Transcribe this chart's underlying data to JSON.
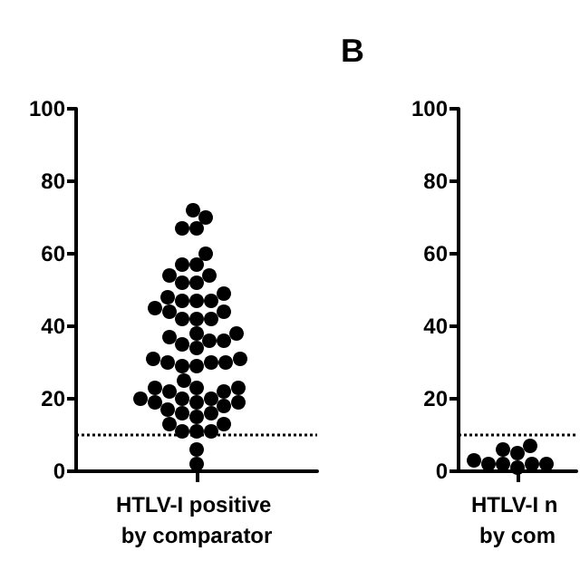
{
  "chart_data": [
    {
      "type": "scatter",
      "categories": [
        "HTLV-I positive by comparator"
      ],
      "marker": "circle",
      "series": [
        {
          "color": "#000000",
          "x": [
            "HTLV-I positive by comparator",
            "HTLV-I positive by comparator",
            "HTLV-I positive by comparator",
            "HTLV-I positive by comparator",
            "HTLV-I positive by comparator",
            "HTLV-I positive by comparator",
            "HTLV-I positive by comparator",
            "HTLV-I positive by comparator",
            "HTLV-I positive by comparator",
            "HTLV-I positive by comparator",
            "HTLV-I positive by comparator",
            "HTLV-I positive by comparator",
            "HTLV-I positive by comparator",
            "HTLV-I positive by comparator",
            "HTLV-I positive by comparator",
            "HTLV-I positive by comparator",
            "HTLV-I positive by comparator",
            "HTLV-I positive by comparator",
            "HTLV-I positive by comparator",
            "HTLV-I positive by comparator",
            "HTLV-I positive by comparator",
            "HTLV-I positive by comparator",
            "HTLV-I positive by comparator",
            "HTLV-I positive by comparator",
            "HTLV-I positive by comparator",
            "HTLV-I positive by comparator",
            "HTLV-I positive by comparator",
            "HTLV-I positive by comparator",
            "HTLV-I positive by comparator",
            "HTLV-I positive by comparator",
            "HTLV-I positive by comparator",
            "HTLV-I positive by comparator",
            "HTLV-I positive by comparator",
            "HTLV-I positive by comparator",
            "HTLV-I positive by comparator",
            "HTLV-I positive by comparator",
            "HTLV-I positive by comparator",
            "HTLV-I positive by comparator",
            "HTLV-I positive by comparator",
            "HTLV-I positive by comparator",
            "HTLV-I positive by comparator",
            "HTLV-I positive by comparator",
            "HTLV-I positive by comparator",
            "HTLV-I positive by comparator",
            "HTLV-I positive by comparator",
            "HTLV-I positive by comparator",
            "HTLV-I positive by comparator",
            "HTLV-I positive by comparator",
            "HTLV-I positive by comparator",
            "HTLV-I positive by comparator",
            "HTLV-I positive by comparator",
            "HTLV-I positive by comparator",
            "HTLV-I positive by comparator",
            "HTLV-I positive by comparator",
            "HTLV-I positive by comparator",
            "HTLV-I positive by comparator",
            "HTLV-I positive by comparator",
            "HTLV-I positive by comparator",
            "HTLV-I positive by comparator",
            "HTLV-I positive by comparator"
          ],
          "values": [
            72,
            70,
            67,
            67,
            60,
            57,
            57,
            54,
            54,
            52,
            52,
            49,
            48,
            47,
            47,
            47,
            45,
            44,
            44,
            42,
            42,
            42,
            38,
            38,
            37,
            36,
            36,
            35,
            34,
            29,
            29,
            30,
            31,
            30,
            30,
            31,
            25,
            23,
            23,
            23,
            22,
            22,
            20,
            20,
            20,
            19,
            19,
            19,
            18,
            17,
            16,
            16,
            15,
            13,
            13,
            11,
            11,
            11,
            6,
            2
          ]
        }
      ],
      "ylim": [
        0,
        100
      ],
      "yticks": [
        0,
        20,
        40,
        60,
        80,
        100
      ],
      "ref_lines": [
        {
          "axis": "y",
          "value": 10,
          "line_style": "dotted",
          "color": "#000000"
        }
      ]
    },
    {
      "type": "scatter",
      "title": "B",
      "categories": [
        "HTLV-I n by com"
      ],
      "marker": "circle",
      "series": [
        {
          "color": "#000000",
          "x": [
            "HTLV-I n by com",
            "HTLV-I n by com",
            "HTLV-I n by com",
            "HTLV-I n by com",
            "HTLV-I n by com",
            "HTLV-I n by com",
            "HTLV-I n by com",
            "HTLV-I n by com",
            "HTLV-I n by com"
          ],
          "values": [
            2,
            2,
            1,
            2,
            2,
            3,
            5,
            7,
            6
          ]
        }
      ],
      "ylim": [
        0,
        100
      ],
      "yticks": [
        0,
        20,
        40,
        60,
        80,
        100
      ],
      "ref_lines": [
        {
          "axis": "y",
          "value": 10,
          "line_style": "dotted",
          "color": "#000000"
        }
      ]
    }
  ]
}
